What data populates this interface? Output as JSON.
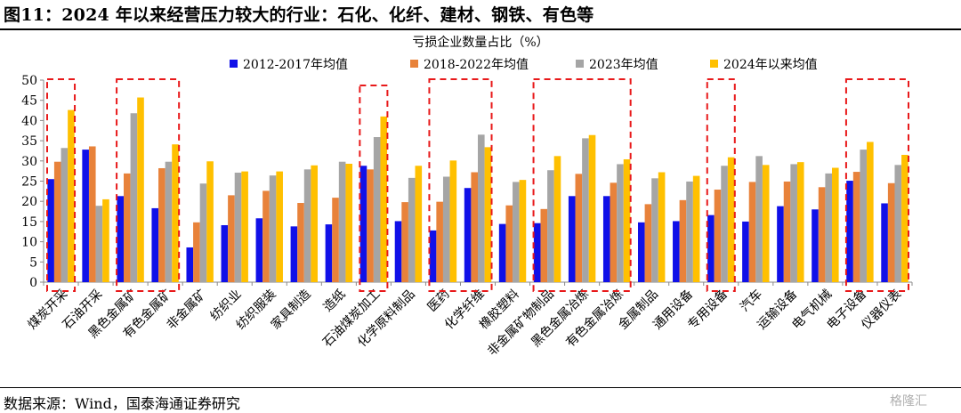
{
  "figure_title": "图11：2024 年以来经营压力较大的行业：石化、化纤、建材、钢铁、有色等",
  "source": "数据来源：Wind，国泰海通证券研究",
  "watermark": "格隆汇",
  "colors": {
    "s1": "#1010e8",
    "s2": "#e8823a",
    "s3": "#a5a5a5",
    "s4": "#ffc000",
    "highlight": "#e8191a"
  },
  "chart_data": {
    "type": "bar",
    "title": "亏损企业数量占比（%）",
    "ylim": [
      0,
      50
    ],
    "yticks": [
      0,
      5,
      10,
      15,
      20,
      25,
      30,
      35,
      40,
      45,
      50
    ],
    "legend_position": "top",
    "categories": [
      "煤炭开采",
      "石油开采",
      "黑色金属矿",
      "有色金属矿",
      "非金属矿",
      "纺织业",
      "纺织服装",
      "家具制造",
      "造纸",
      "石油煤炭加工",
      "化学原料制品",
      "医药",
      "化学纤维",
      "橡胶塑料",
      "非金属矿物制品",
      "黑色金属冶炼",
      "有色金属冶炼",
      "金属制品",
      "通用设备",
      "专用设备",
      "汽车",
      "运输设备",
      "电气机械",
      "电子设备",
      "仪器仪表"
    ],
    "series": [
      {
        "name": "2012-2017年均值",
        "color": "#1010e8",
        "values": [
          25.5,
          32.8,
          21.3,
          18.3,
          8.6,
          14.1,
          15.8,
          13.8,
          14.3,
          28.8,
          15.1,
          12.8,
          23.3,
          14.4,
          14.6,
          21.3,
          21.3,
          14.8,
          15.1,
          16.6,
          15.0,
          18.8,
          18.0,
          25.1,
          19.5
        ]
      },
      {
        "name": "2018-2022年均值",
        "color": "#e8823a",
        "values": [
          29.8,
          33.6,
          26.9,
          28.2,
          14.8,
          21.5,
          22.6,
          19.6,
          20.9,
          27.9,
          19.8,
          19.9,
          27.2,
          19.0,
          18.1,
          26.8,
          24.6,
          19.3,
          20.3,
          22.9,
          24.8,
          24.9,
          23.5,
          27.3,
          24.5
        ]
      },
      {
        "name": "2023年均值",
        "color": "#a5a5a5",
        "values": [
          33.2,
          18.9,
          41.8,
          29.8,
          24.4,
          27.1,
          26.4,
          27.9,
          29.8,
          35.9,
          25.8,
          26.1,
          36.5,
          24.8,
          27.7,
          35.6,
          29.2,
          25.7,
          24.9,
          28.8,
          31.2,
          29.2,
          26.9,
          32.8,
          29.0
        ]
      },
      {
        "name": "2024年以来均值",
        "color": "#ffc000",
        "values": [
          42.6,
          20.5,
          45.7,
          34.1,
          29.9,
          27.4,
          27.4,
          28.9,
          29.3,
          41.0,
          28.8,
          30.1,
          33.4,
          25.3,
          31.2,
          36.4,
          30.4,
          27.2,
          26.3,
          30.9,
          29.0,
          29.7,
          28.3,
          34.7,
          31.5
        ]
      }
    ],
    "highlight_groups": [
      [
        0,
        0
      ],
      [
        2,
        3
      ],
      [
        9,
        9
      ],
      [
        11,
        12
      ],
      [
        14,
        16
      ],
      [
        19,
        19
      ],
      [
        23,
        24
      ]
    ]
  }
}
